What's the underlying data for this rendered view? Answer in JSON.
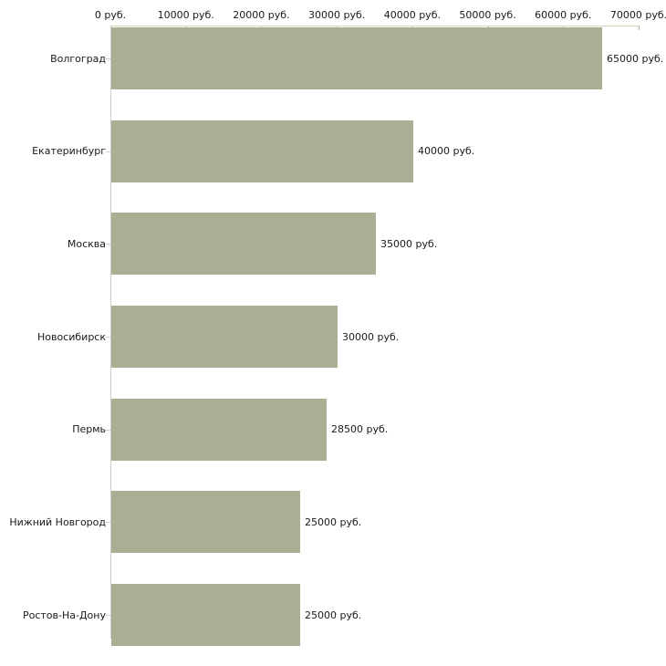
{
  "chart_data": {
    "type": "bar",
    "orientation": "horizontal",
    "title": "",
    "xlabel": "",
    "ylabel": "",
    "grid": "off",
    "legend": "none",
    "categories": [
      "Волгоград",
      "Екатеринбург",
      "Москва",
      "Новосибирск",
      "Пермь",
      "Нижний Новгород",
      "Ростов-На-Дону"
    ],
    "values": [
      65000,
      40000,
      35000,
      30000,
      28500,
      25000,
      25000
    ],
    "value_labels": [
      "65000 руб.",
      "40000 руб.",
      "35000 руб.",
      "30000 руб.",
      "28500 руб.",
      "25000 руб.",
      "25000 руб."
    ],
    "x_axis": {
      "position": "top",
      "min": 0,
      "max": 70000,
      "tick_values": [
        0,
        10000,
        20000,
        30000,
        40000,
        50000,
        60000,
        70000
      ],
      "tick_labels": [
        "0 руб.",
        "10000 руб.",
        "20000 руб.",
        "30000 руб.",
        "40000 руб.",
        "50000 руб.",
        "60000 руб.",
        "70000 руб."
      ]
    },
    "colors": {
      "bar_fill": "#aaaf94",
      "axis_line_horizontal": "#d6d2b8",
      "axis_line_vertical": "#cccccc",
      "tick": "#b5b194",
      "text": "#1a1a1a",
      "background": "#ffffff"
    }
  }
}
